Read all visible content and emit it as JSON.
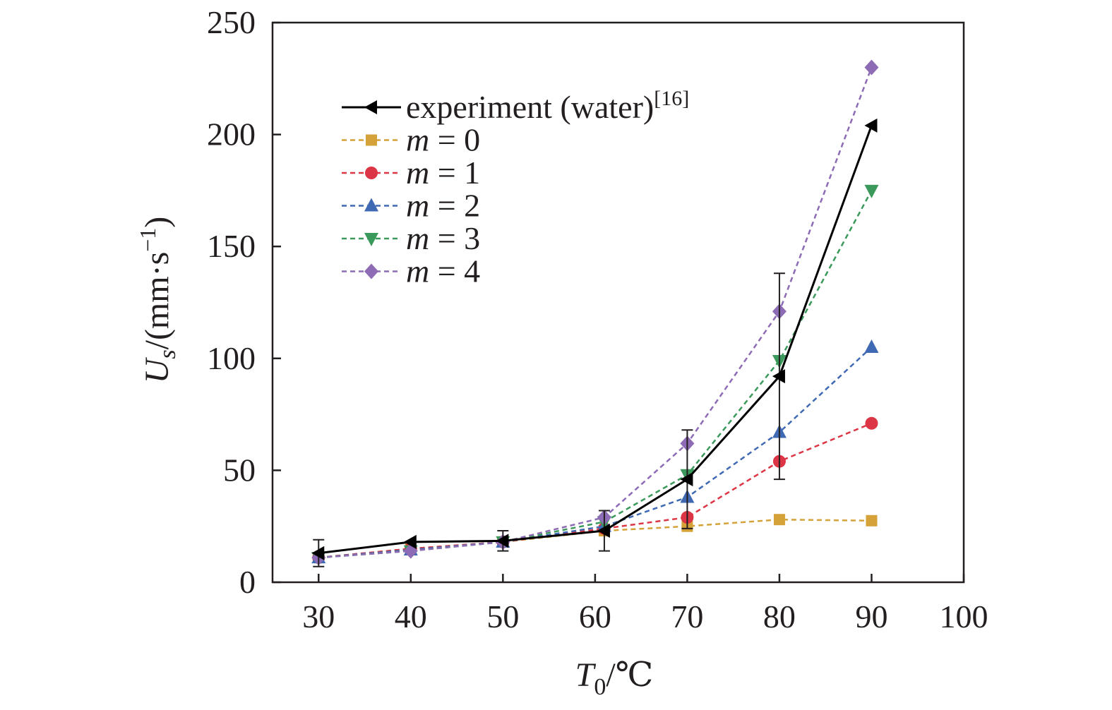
{
  "chart_data": {
    "type": "line",
    "xlabel": {
      "symbol": "T",
      "subscript": "0",
      "unit": "/℃"
    },
    "ylabel": {
      "symbol": "U",
      "subscript": "s",
      "unit": "/(mm·s",
      "unit_sup": "−1",
      "unit_close": ")"
    },
    "xlim": [
      25,
      100
    ],
    "ylim": [
      0,
      250
    ],
    "xticks": [
      30,
      40,
      50,
      60,
      70,
      80,
      90,
      100
    ],
    "yticks": [
      0,
      50,
      100,
      150,
      200,
      250
    ],
    "grid": false,
    "legend_position": "upper-left",
    "series": [
      {
        "name": "experiment (water)",
        "name_sup": "[16]",
        "label_italic": false,
        "color": "#000000",
        "marker": "triangle-left",
        "line": "solid",
        "x": [
          30,
          40,
          50,
          61,
          70,
          80,
          90
        ],
        "y": [
          13,
          18,
          18.5,
          23,
          46,
          92,
          204
        ],
        "error": [
          6,
          null,
          4.5,
          9,
          22,
          46,
          null
        ]
      },
      {
        "name": "m = 0",
        "label_var": "m",
        "label_rest": " = 0",
        "label_italic": true,
        "color": "#d4a238",
        "marker": "square",
        "line": "dashed",
        "x": [
          30,
          40,
          50,
          61,
          70,
          80,
          90
        ],
        "y": [
          11,
          15,
          18,
          23,
          25,
          28,
          27.5
        ]
      },
      {
        "name": "m = 1",
        "label_var": "m",
        "label_rest": " = 1",
        "label_italic": true,
        "color": "#dc3545",
        "marker": "circle",
        "line": "dashed",
        "x": [
          30,
          40,
          50,
          61,
          70,
          80,
          90
        ],
        "y": [
          11,
          15,
          18,
          24,
          29,
          54,
          71
        ]
      },
      {
        "name": "m = 2",
        "label_var": "m",
        "label_rest": " = 2",
        "label_italic": true,
        "color": "#3f69b3",
        "marker": "triangle-up",
        "line": "dashed",
        "x": [
          30,
          40,
          50,
          61,
          70,
          80,
          90
        ],
        "y": [
          11,
          14.5,
          18,
          25,
          38,
          67,
          105
        ]
      },
      {
        "name": "m = 3",
        "label_var": "m",
        "label_rest": " = 3",
        "label_italic": true,
        "color": "#3b9a5b",
        "marker": "triangle-down",
        "line": "dashed",
        "x": [
          30,
          40,
          50,
          61,
          70,
          80,
          90
        ],
        "y": [
          11,
          14,
          18,
          27,
          48,
          99,
          175
        ]
      },
      {
        "name": "m = 4",
        "label_var": "m",
        "label_rest": " = 4",
        "label_italic": true,
        "color": "#8d6bb5",
        "marker": "diamond",
        "line": "dashed",
        "x": [
          30,
          40,
          50,
          61,
          70,
          80,
          90
        ],
        "y": [
          11,
          14,
          18,
          29,
          62,
          121,
          230
        ]
      }
    ]
  }
}
